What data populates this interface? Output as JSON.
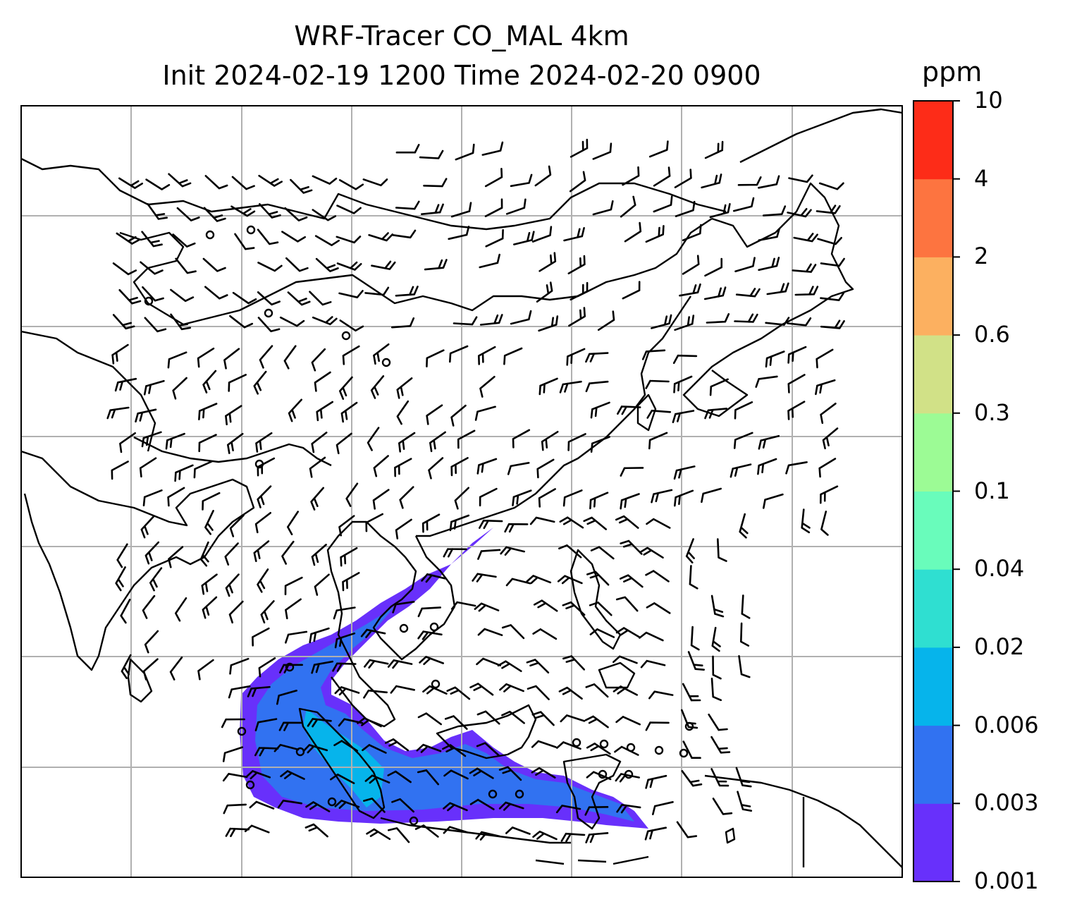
{
  "title_line1": "WRF-Tracer CO_MAL 4km",
  "title_line2": "Init 2024-02-19 1200 Time 2024-02-20 0900",
  "colorbar": {
    "unit": "ppm",
    "levels": [
      "0.001",
      "0.003",
      "0.006",
      "0.02",
      "0.04",
      "0.1",
      "0.3",
      "0.6",
      "2",
      "4",
      "10"
    ],
    "colors": [
      "#6830fb",
      "#3172f1",
      "#06b4eb",
      "#2fdfd1",
      "#69fcbb",
      "#9cfb95",
      "#d1e187",
      "#fcb060",
      "#fd7440",
      "#fd2c18"
    ]
  },
  "map": {
    "layers": [
      "coastlines",
      "country-borders",
      "lat-lon-gridlines",
      "wind-barbs",
      "CO-tracer-contourf"
    ],
    "plume_colors_present": [
      "#6830fb",
      "#3172f1",
      "#06b4eb"
    ]
  }
}
